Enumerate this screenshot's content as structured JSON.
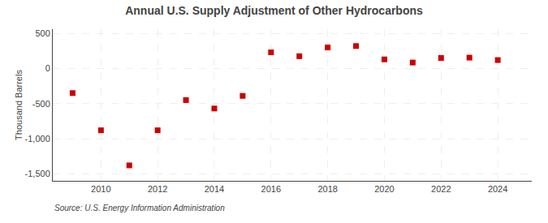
{
  "chart_data": {
    "type": "scatter",
    "title": "Annual U.S. Supply Adjustment of Other Hydrocarbons",
    "y_label": "Thousand Barrels",
    "annotations": [
      "Source: U.S. Energy Information Administration"
    ],
    "x": [
      2009,
      2010,
      2011,
      2012,
      2013,
      2014,
      2015,
      2016,
      2017,
      2018,
      2019,
      2020,
      2021,
      2022,
      2023,
      2024
    ],
    "values": [
      -350,
      -880,
      -1380,
      -880,
      -450,
      -570,
      -390,
      230,
      175,
      300,
      320,
      130,
      85,
      150,
      155,
      120
    ],
    "color": "#cc0000",
    "marker": "square",
    "xlim": [
      2008.3,
      2025.2
    ],
    "xticks": [
      2010,
      2012,
      2014,
      2016,
      2018,
      2020,
      2022,
      2024
    ],
    "ylim": [
      -1600,
      560
    ],
    "yticks": [
      {
        "value": -1500,
        "label": "-1,500"
      },
      {
        "value": -1000,
        "label": "-1,000"
      },
      -500,
      0,
      500
    ],
    "grid": true
  }
}
